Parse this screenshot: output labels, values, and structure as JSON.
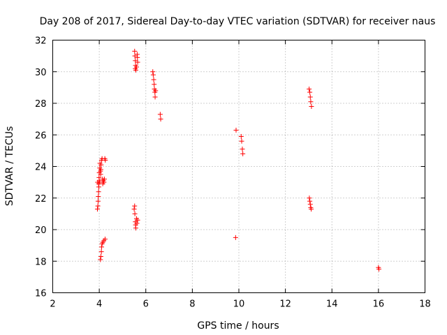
{
  "chart_data": {
    "type": "scatter",
    "title": "Day 208 of 2017, Sidereal Day-to-day VTEC variation (SDTVAR) for receiver naus",
    "xlabel": "GPS time / hours",
    "ylabel": "SDTVAR / TECUs",
    "xlim": [
      2,
      18
    ],
    "ylim": [
      16,
      32
    ],
    "xticks": [
      2,
      4,
      6,
      8,
      10,
      12,
      14,
      16,
      18
    ],
    "yticks": [
      16,
      18,
      20,
      22,
      24,
      26,
      28,
      30,
      32
    ],
    "xtick_labels": [
      "2",
      "4",
      "6",
      "8",
      "10",
      "12",
      "14",
      "16",
      "18"
    ],
    "ytick_labels": [
      "16",
      "18",
      "20",
      "22",
      "24",
      "26",
      "28",
      "30",
      "32"
    ],
    "grid": true,
    "marker": "+",
    "color": "#ff0000",
    "series": [
      {
        "name": "SDTVAR",
        "points": [
          [
            3.92,
            21.3
          ],
          [
            3.94,
            21.5
          ],
          [
            3.95,
            21.8
          ],
          [
            3.96,
            22.1
          ],
          [
            3.97,
            22.4
          ],
          [
            3.98,
            22.7
          ],
          [
            3.93,
            23.0
          ],
          [
            3.97,
            22.9
          ],
          [
            4.0,
            23.1
          ],
          [
            4.02,
            23.0
          ],
          [
            3.99,
            23.3
          ],
          [
            4.0,
            23.6
          ],
          [
            4.02,
            23.9
          ],
          [
            4.03,
            24.2
          ],
          [
            4.05,
            23.7
          ],
          [
            4.06,
            23.5
          ],
          [
            4.07,
            23.8
          ],
          [
            4.08,
            24.1
          ],
          [
            4.1,
            24.4
          ],
          [
            4.12,
            24.5
          ],
          [
            4.14,
            23.2
          ],
          [
            4.15,
            22.9
          ],
          [
            4.18,
            23.1
          ],
          [
            4.2,
            23.0
          ],
          [
            4.22,
            23.2
          ],
          [
            4.24,
            24.5
          ],
          [
            4.26,
            24.4
          ],
          [
            4.05,
            18.1
          ],
          [
            4.07,
            18.3
          ],
          [
            4.09,
            18.6
          ],
          [
            4.1,
            18.9
          ],
          [
            4.12,
            19.1
          ],
          [
            4.15,
            19.2
          ],
          [
            4.2,
            19.3
          ],
          [
            4.25,
            19.4
          ],
          [
            5.5,
            21.3
          ],
          [
            5.52,
            21.5
          ],
          [
            5.53,
            21.0
          ],
          [
            5.55,
            20.5
          ],
          [
            5.56,
            20.3
          ],
          [
            5.57,
            20.1
          ],
          [
            5.6,
            20.7
          ],
          [
            5.62,
            20.4
          ],
          [
            5.65,
            20.6
          ],
          [
            5.52,
            31.3
          ],
          [
            5.53,
            31.0
          ],
          [
            5.55,
            30.7
          ],
          [
            5.56,
            30.4
          ],
          [
            5.57,
            30.1
          ],
          [
            5.6,
            30.3
          ],
          [
            5.63,
            31.1
          ],
          [
            5.64,
            30.9
          ],
          [
            5.65,
            30.6
          ],
          [
            5.55,
            30.2
          ],
          [
            6.3,
            30.0
          ],
          [
            6.32,
            29.8
          ],
          [
            6.34,
            29.5
          ],
          [
            6.36,
            29.2
          ],
          [
            6.37,
            28.9
          ],
          [
            6.39,
            28.7
          ],
          [
            6.4,
            28.4
          ],
          [
            6.42,
            28.8
          ],
          [
            6.62,
            27.3
          ],
          [
            6.64,
            27.0
          ],
          [
            9.88,
            26.3
          ],
          [
            9.86,
            19.5
          ],
          [
            10.1,
            25.9
          ],
          [
            10.12,
            25.6
          ],
          [
            10.15,
            25.1
          ],
          [
            10.17,
            24.8
          ],
          [
            13.02,
            28.9
          ],
          [
            13.05,
            28.7
          ],
          [
            13.07,
            28.4
          ],
          [
            13.09,
            28.1
          ],
          [
            13.12,
            27.8
          ],
          [
            13.03,
            22.0
          ],
          [
            13.05,
            21.8
          ],
          [
            13.07,
            21.6
          ],
          [
            13.09,
            21.4
          ],
          [
            13.11,
            21.3
          ],
          [
            16.0,
            17.6
          ],
          [
            16.02,
            17.5
          ]
        ]
      }
    ]
  }
}
